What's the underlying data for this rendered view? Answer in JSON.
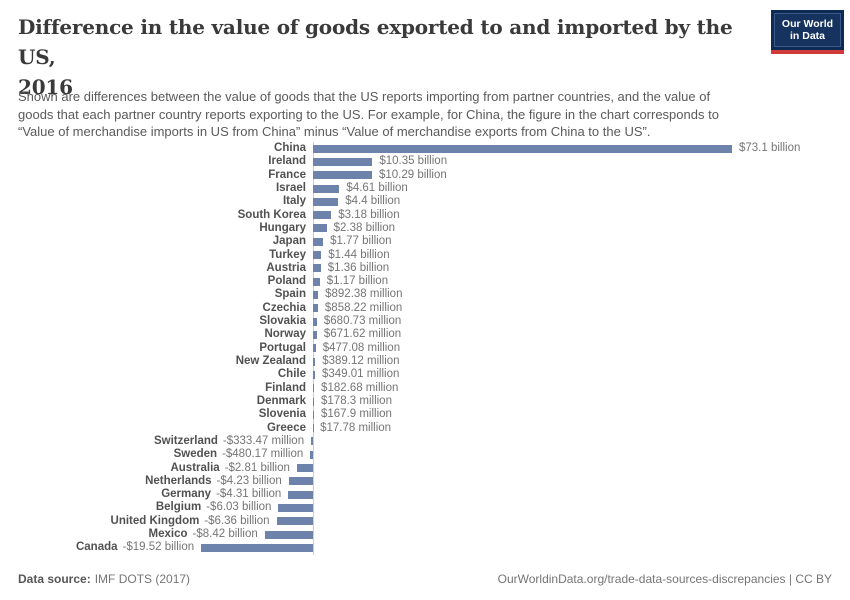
{
  "header": {
    "title_lines": [
      "Difference in the value of goods exported to and imported by the US,",
      "2016"
    ],
    "subtitle_lines": [
      "Shown are differences between the value of goods that the US reports importing from partner countries, and the value of",
      "goods that each partner country reports exporting to the US. For example, for China, the figure in the chart corresponds to",
      "“Value of merchandise imports in US from China” minus “Value of merchandise exports from China to the US”."
    ]
  },
  "logo": {
    "line1": "Our World",
    "line2": "in Data",
    "bg_color": "#0d2a54",
    "accent_color": "#cf3a3a"
  },
  "chart_data": {
    "type": "bar",
    "orientation": "horizontal",
    "title": "Difference in the value of goods exported to and imported by the US, 2016",
    "unit": "billion USD",
    "xlim": [
      -20,
      75
    ],
    "grid": false,
    "legend": "none",
    "bar_color": "#6d83ab",
    "axis_color": "#cccccc",
    "categories": [
      "China",
      "Ireland",
      "France",
      "Israel",
      "Italy",
      "South Korea",
      "Hungary",
      "Japan",
      "Turkey",
      "Austria",
      "Poland",
      "Spain",
      "Czechia",
      "Slovakia",
      "Norway",
      "Portugal",
      "New Zealand",
      "Chile",
      "Finland",
      "Denmark",
      "Slovenia",
      "Greece",
      "Switzerland",
      "Sweden",
      "Australia",
      "Netherlands",
      "Germany",
      "Belgium",
      "United Kingdom",
      "Mexico",
      "Canada"
    ],
    "values": [
      73.1,
      10.35,
      10.29,
      4.61,
      4.4,
      3.18,
      2.38,
      1.77,
      1.44,
      1.36,
      1.17,
      0.89238,
      0.85822,
      0.68073,
      0.67162,
      0.47708,
      0.38912,
      0.34901,
      0.18268,
      0.1783,
      0.1679,
      0.01778,
      -0.33347,
      -0.48017,
      -2.81,
      -4.23,
      -4.31,
      -6.03,
      -6.36,
      -8.42,
      -19.52
    ],
    "value_labels": [
      "$73.1 billion",
      "$10.35 billion",
      "$10.29 billion",
      "$4.61 billion",
      "$4.4 billion",
      "$3.18 billion",
      "$2.38 billion",
      "$1.77 billion",
      "$1.44 billion",
      "$1.36 billion",
      "$1.17 billion",
      "$892.38 million",
      "$858.22 million",
      "$680.73 million",
      "$671.62 million",
      "$477.08 million",
      "$389.12 million",
      "$349.01 million",
      "$182.68 million",
      "$178.3 million",
      "$167.9 million",
      "$17.78 million",
      "-$333.47 million",
      "-$480.17 million",
      "-$2.81 billion",
      "-$4.23 billion",
      "-$4.31 billion",
      "-$6.03 billion",
      "-$6.36 billion",
      "-$8.42 billion",
      "-$19.52 billion"
    ]
  },
  "footer": {
    "source_label": "Data source:",
    "source_value": "IMF DOTS (2017)",
    "credit": "OurWorldinData.org/trade-data-sources-discrepancies | CC BY"
  }
}
